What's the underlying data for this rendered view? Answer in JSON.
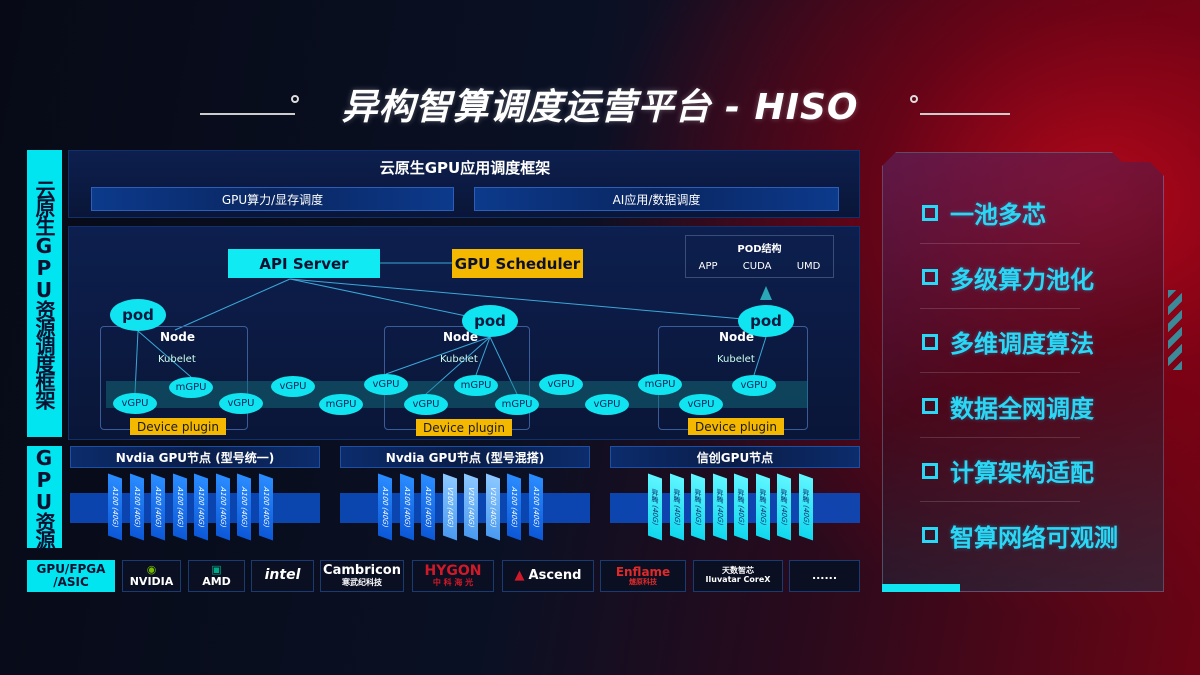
{
  "title": "异构智算调度运营平台 - HISO",
  "left_labels": {
    "framework": "云原生GPU资源调度框架",
    "resources": "GPU资源"
  },
  "top_panel": {
    "title": "云原生GPU应用调度框架",
    "sub": [
      "GPU算力/显存调度",
      "AI应用/数据调度"
    ]
  },
  "diagram": {
    "api_server": "API Server",
    "gpu_scheduler": "GPU Scheduler",
    "pod_structure": {
      "title": "POD结构",
      "items": [
        "APP",
        "CUDA",
        "UMD"
      ]
    },
    "pod": "pod",
    "node": "Node",
    "kubelet": "Kubelet",
    "device_plugin": "Device plugin",
    "vgpu": "vGPU",
    "mgpu": "mGPU"
  },
  "gpu_nodes": [
    {
      "title": "Nvdia GPU节点 (型号统一)",
      "chips": [
        "A100 (40G)",
        "A100 (40G)",
        "A100 (40G)",
        "A100 (40G)",
        "A100 (40G)",
        "A100 (40G)",
        "A100 (40G)",
        "A100 (40G)"
      ]
    },
    {
      "title": "Nvdia GPU节点 (型号混搭)",
      "chips": [
        "A100 (40G)",
        "A100 (40G)",
        "A100 (40G)",
        "V100 (40G)",
        "V100 (40G)",
        "V100 (40G)",
        "A100 (40G)",
        "A100 (40G)"
      ]
    },
    {
      "title": "信创GPU节点",
      "chips": [
        "昇腾 (40G)",
        "昇腾 (40G)",
        "昇腾 (40G)",
        "昇腾 (40G)",
        "昇腾 (40G)",
        "昇腾 (40G)",
        "昇腾 (40G)",
        "昇腾 (40G)"
      ]
    }
  ],
  "vendors": {
    "label": "GPU/FPGA /ASIC",
    "items": [
      "NVIDIA",
      "AMD",
      "intel",
      "Cambricon",
      "寒武纪科技",
      "HYGON",
      "中 科 海 光",
      "Ascend",
      "Enflame",
      "燧原科技",
      "天数智芯",
      "Iluvatar CoreX",
      "......"
    ]
  },
  "features": [
    "一池多芯",
    "多级算力池化",
    "多维调度算法",
    "数据全网调度",
    "计算架构适配",
    "智算网络可观测"
  ],
  "colors": {
    "cyan": "#10e4f0",
    "orange": "#f5b800",
    "feature": "#2ad8f5"
  }
}
